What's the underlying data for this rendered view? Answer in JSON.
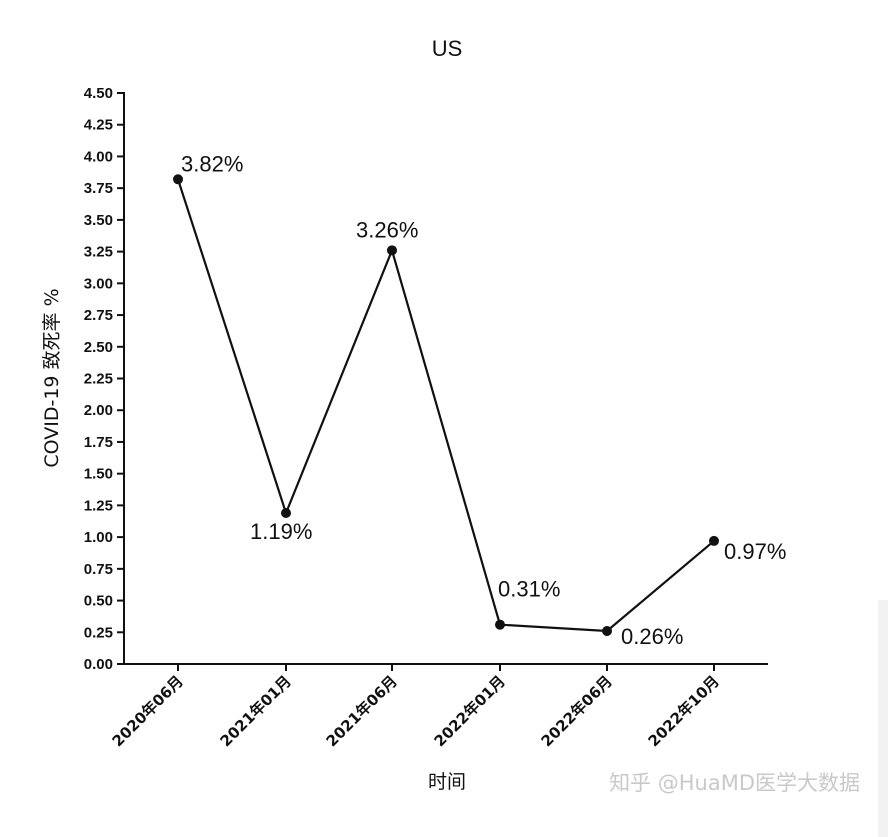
{
  "chart_data": {
    "type": "line",
    "title": "US",
    "xlabel": "时间",
    "ylabel": "COVID-19 致死率 %",
    "ylim": [
      0,
      4.5
    ],
    "yticks": [
      "0.00",
      "0.25",
      "0.50",
      "0.75",
      "1.00",
      "1.25",
      "1.50",
      "1.75",
      "2.00",
      "2.25",
      "2.50",
      "2.75",
      "3.00",
      "3.25",
      "3.50",
      "3.75",
      "4.00",
      "4.25",
      "4.50"
    ],
    "categories": [
      "2020年06月",
      "2021年01月",
      "2021年06月",
      "2022年01月",
      "2022年06月",
      "2022年10月"
    ],
    "series": [
      {
        "values": [
          3.82,
          1.19,
          3.26,
          0.31,
          0.26,
          0.97
        ],
        "labels": [
          "3.82%",
          "1.19%",
          "3.26%",
          "0.31%",
          "0.26%",
          "0.97%"
        ]
      }
    ],
    "grid": false,
    "legend": "none",
    "line_color": "#111111"
  },
  "watermark": "知乎 @HuaMD医学大数据"
}
